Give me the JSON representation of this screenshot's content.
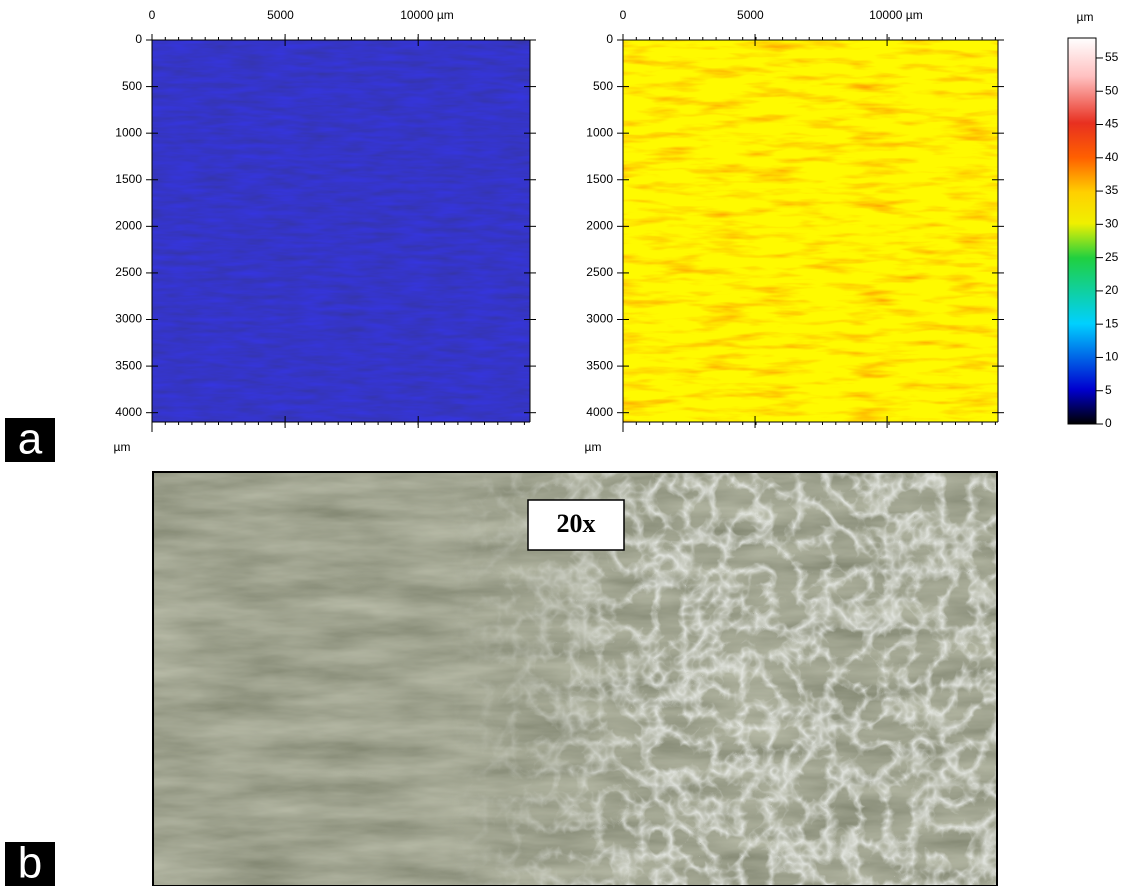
{
  "figure": {
    "panel_a": {
      "label": "a",
      "maps": [
        {
          "xlim": [
            0,
            14200
          ],
          "ylim": [
            0,
            4100
          ],
          "xticks": [
            0,
            5000,
            {
              "value": 10000,
              "label": "10000 µm"
            }
          ],
          "yticks": [
            0,
            500,
            1000,
            1500,
            2000,
            2500,
            3000,
            3500,
            4000
          ],
          "y_unit": "µm"
        },
        {
          "xlim": [
            0,
            14200
          ],
          "ylim": [
            0,
            4100
          ],
          "xticks": [
            0,
            5000,
            {
              "value": 10000,
              "label": "10000 µm"
            }
          ],
          "yticks": [
            0,
            500,
            1000,
            1500,
            2000,
            2500,
            3000,
            3500,
            4000
          ],
          "y_unit": "µm"
        }
      ],
      "colorbar": {
        "unit": "µm",
        "lim": [
          0,
          58
        ],
        "ticks": [
          0,
          5,
          10,
          15,
          20,
          25,
          30,
          35,
          40,
          45,
          50,
          55
        ]
      }
    },
    "panel_b": {
      "label": "b",
      "magnification": "20x"
    }
  }
}
